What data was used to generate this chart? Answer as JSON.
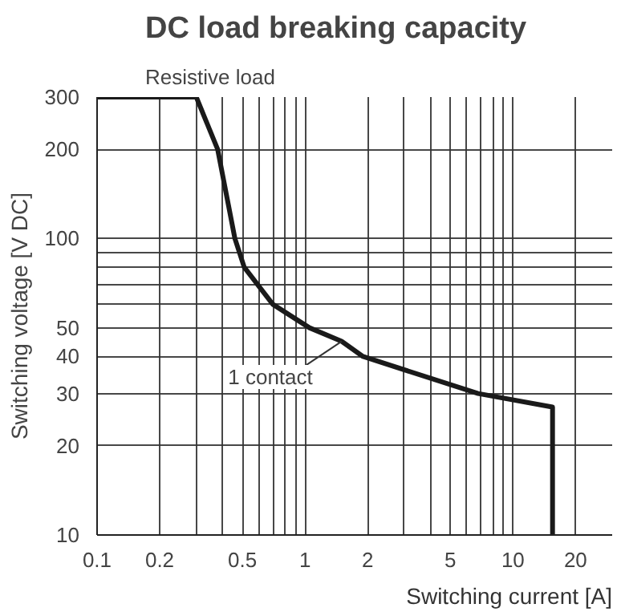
{
  "chart_data": {
    "type": "line",
    "title": "DC load breaking capacity",
    "subtitle": "Resistive load",
    "xlabel": "Switching current [A]",
    "ylabel": "Switching voltage [V DC]",
    "log": "xy",
    "grid": true,
    "marker": "none",
    "line_style": "solid",
    "xlim": [
      0.1,
      30
    ],
    "ylim": [
      10,
      300
    ],
    "xticks": [
      0.1,
      0.2,
      {
        "value": 0.3,
        "label": null
      },
      {
        "value": 0.4,
        "label": null
      },
      0.5,
      {
        "value": 0.6,
        "label": null
      },
      {
        "value": 0.7,
        "label": null
      },
      {
        "value": 0.8,
        "label": null
      },
      {
        "value": 0.9,
        "label": null
      },
      1,
      2,
      {
        "value": 3,
        "label": null
      },
      {
        "value": 4,
        "label": null
      },
      5,
      {
        "value": 6,
        "label": null
      },
      {
        "value": 7,
        "label": null
      },
      {
        "value": 8,
        "label": null
      },
      {
        "value": 9,
        "label": null
      },
      10,
      20
    ],
    "yticks": [
      10,
      20,
      30,
      40,
      50,
      {
        "value": 60,
        "label": null
      },
      {
        "value": 70,
        "label": null
      },
      {
        "value": 80,
        "label": null
      },
      {
        "value": 90,
        "label": null
      },
      100,
      200,
      300
    ],
    "series": [
      {
        "color": "#1a1a1a",
        "x": [
          0.1,
          0.3,
          0.38,
          0.46,
          0.51,
          0.7,
          1.05,
          1.5,
          1.9,
          6.8,
          15.5,
          15.5
        ],
        "values": [
          300,
          300,
          200,
          100,
          80,
          60,
          50,
          45,
          40,
          30,
          27,
          10
        ]
      }
    ],
    "annotations": [
      {
        "text": "1 contact",
        "x": 1.5,
        "y": 45
      }
    ]
  }
}
